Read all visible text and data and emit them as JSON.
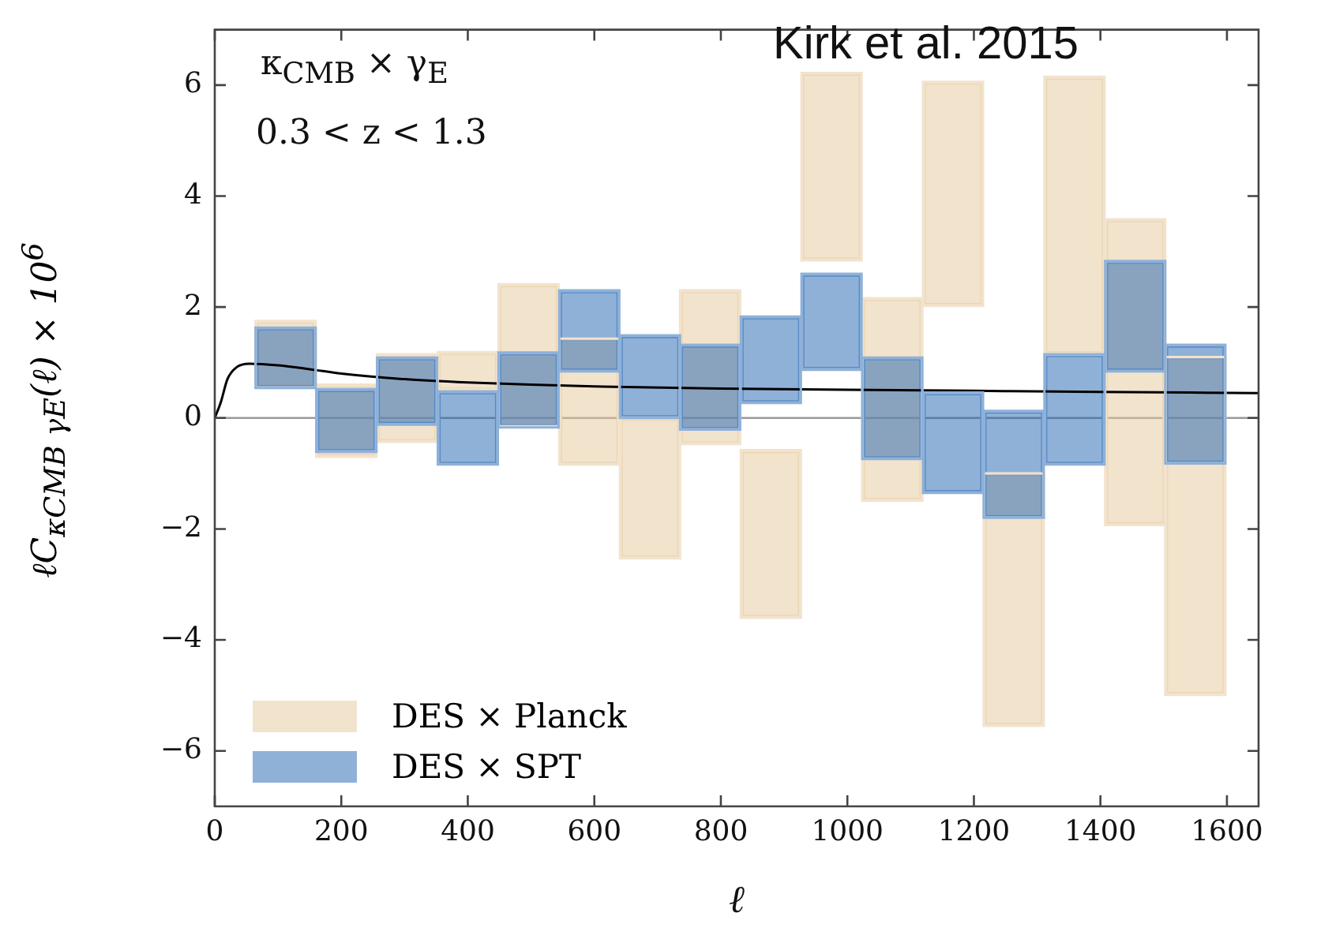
{
  "chart_data": {
    "type": "bar",
    "xlabel": "ℓ",
    "ylabel": "ℓC$_{κCMB γE}$(ℓ) × 10$^{6}$",
    "annotations": [
      "κ$_{CMB}$ × γ$_{E}$",
      "0.3 < z < 1.3",
      "Kirk et al. 2015"
    ],
    "x": [
      112,
      208,
      304,
      400,
      496,
      592,
      688,
      783,
      879,
      975,
      1071,
      1167,
      1263,
      1359,
      1455,
      1550
    ],
    "series": [
      {
        "name": "DES × Planck",
        "color": "#f2e3cd",
        "base": [
          0.55,
          -0.7,
          -0.43,
          0.5,
          -0.15,
          1.43,
          -2.53,
          -0.47,
          -3.6,
          2.84,
          -1.49,
          2.02,
          -1.0,
          1.15,
          -1.93,
          1.1
        ],
        "values": [
          1.2,
          1.3,
          1.58,
          0.69,
          2.56,
          -2.27,
          2.53,
          2.77,
          3.02,
          3.38,
          3.65,
          4.04,
          -4.55,
          5.0,
          5.51,
          -6.09
        ]
      },
      {
        "name": "DES × SPT",
        "color": "#8fb1d8",
        "base": [
          0.54,
          -0.61,
          -0.12,
          -0.84,
          -0.17,
          0.84,
          0,
          -0.21,
          0.27,
          0.87,
          -0.74,
          -1.35,
          -1.8,
          -0.84,
          0.84,
          -0.82
        ],
        "values": [
          1.09,
          1.13,
          1.21,
          1.32,
          1.35,
          1.46,
          1.49,
          1.53,
          1.56,
          1.73,
          1.83,
          1.81,
          1.93,
          1.99,
          1.99,
          2.14
        ]
      },
      {
        "type": "line",
        "color": "#000000",
        "x": [
          0,
          10,
          20,
          35,
          55,
          100,
          150,
          200,
          300,
          400,
          500,
          600,
          800,
          1000,
          1200,
          1400,
          1650
        ],
        "values": [
          0,
          0.3,
          0.7,
          0.92,
          0.98,
          0.95,
          0.88,
          0.8,
          0.7,
          0.64,
          0.6,
          0.57,
          0.53,
          0.51,
          0.49,
          0.47,
          0.45
        ]
      }
    ],
    "xlim": [
      0,
      1650
    ],
    "xticks": [
      0,
      200,
      400,
      600,
      800,
      1000,
      1200,
      1400,
      1600
    ],
    "ylim": [
      -7,
      7
    ],
    "yticks": [
      {
        "value": -6,
        "label": "−6"
      },
      {
        "value": -4,
        "label": "−4"
      },
      {
        "value": -2,
        "label": "−2"
      },
      0,
      2,
      4,
      6
    ],
    "ref_lines": [
      {
        "axis": "y",
        "value": 0,
        "color": "#999999"
      }
    ],
    "legend": "bottom left",
    "grid": false,
    "marker": "none",
    "line_style": "solid"
  }
}
